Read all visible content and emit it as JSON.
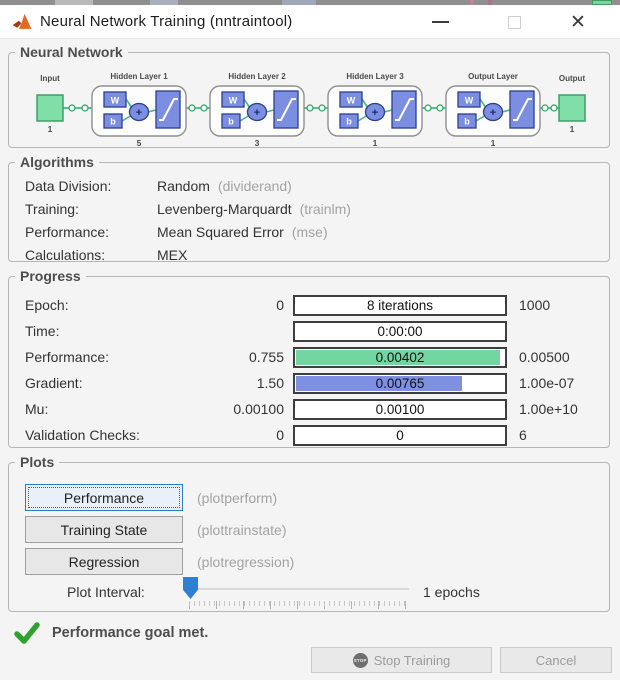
{
  "window": {
    "title": "Neural Network Training (nntraintool)",
    "controls": {
      "minimize": "minimize",
      "maximize": "maximize",
      "close": "close"
    }
  },
  "network": {
    "section_title": "Neural Network",
    "input": {
      "label": "Input",
      "size": "1"
    },
    "output": {
      "label": "Output",
      "size": "1"
    },
    "layers": [
      {
        "name": "Hidden Layer 1",
        "size": "5"
      },
      {
        "name": "Hidden Layer 2",
        "size": "3"
      },
      {
        "name": "Hidden Layer 3",
        "size": "1"
      },
      {
        "name": "Output Layer",
        "size": "1"
      }
    ]
  },
  "algorithms": {
    "section_title": "Algorithms",
    "rows": [
      {
        "label": "Data Division:",
        "value": "Random",
        "fn": "(dividerand)"
      },
      {
        "label": "Training:",
        "value": "Levenberg-Marquardt",
        "fn": "(trainlm)"
      },
      {
        "label": "Performance:",
        "value": "Mean Squared Error",
        "fn": "(mse)"
      },
      {
        "label": "Calculations:",
        "value": "MEX",
        "fn": ""
      }
    ]
  },
  "progress": {
    "section_title": "Progress",
    "rows": [
      {
        "label": "Epoch:",
        "min": "0",
        "bar_text": "8 iterations",
        "max": "1000",
        "fill": "none",
        "fill_pct": 0
      },
      {
        "label": "Time:",
        "min": "",
        "bar_text": "0:00:00",
        "max": "",
        "fill": "none",
        "fill_pct": 0
      },
      {
        "label": "Performance:",
        "min": "0.755",
        "bar_text": "0.00402",
        "max": "0.00500",
        "fill": "green",
        "fill_pct": 98
      },
      {
        "label": "Gradient:",
        "min": "1.50",
        "bar_text": "0.00765",
        "max": "1.00e-07",
        "fill": "blue",
        "fill_pct": 80
      },
      {
        "label": "Mu:",
        "min": "0.00100",
        "bar_text": "0.00100",
        "max": "1.00e+10",
        "fill": "none",
        "fill_pct": 0
      },
      {
        "label": "Validation Checks:",
        "min": "0",
        "bar_text": "0",
        "max": "6",
        "fill": "none",
        "fill_pct": 0
      }
    ]
  },
  "plots": {
    "section_title": "Plots",
    "buttons": [
      {
        "label": "Performance",
        "fn": "(plotperform)",
        "focused": true
      },
      {
        "label": "Training State",
        "fn": "(plottrainstate)",
        "focused": false
      },
      {
        "label": "Regression",
        "fn": "(plotregression)",
        "focused": false
      }
    ],
    "interval": {
      "label": "Plot Interval:",
      "value_text": "1 epochs"
    }
  },
  "status": {
    "message": "Performance goal met."
  },
  "footer": {
    "stop_training_label": "Stop Training",
    "stop_icon_text": "STOP",
    "cancel_label": "Cancel"
  },
  "colors": {
    "progress_green": "#73d6a1",
    "progress_blue": "#7e90e1",
    "diagram_block_green": "#7fdfa7",
    "diagram_block_blue": "#7b8ee0",
    "diagram_line_green": "#44b97c",
    "slider_blue": "#2e7fd3",
    "check_green": "#2fa12f"
  }
}
